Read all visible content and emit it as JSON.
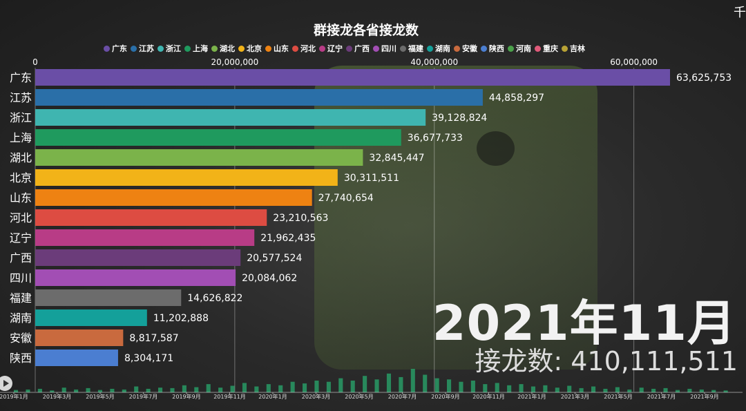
{
  "chart_data": {
    "type": "bar",
    "title": "群接龙各省接龙数",
    "legend": [
      "广东",
      "江苏",
      "浙江",
      "上海",
      "湖北",
      "北京",
      "山东",
      "河北",
      "辽宁",
      "广西",
      "四川",
      "福建",
      "湖南",
      "安徽",
      "陕西",
      "河南",
      "重庆",
      "吉林"
    ],
    "legend_colors": [
      "#6a4ea6",
      "#2a6fa8",
      "#3fb5b0",
      "#1f9a5e",
      "#7bb34a",
      "#f2b318",
      "#ee8212",
      "#dd4c42",
      "#b83c86",
      "#6b3c7a",
      "#a24eb4",
      "#6c6c6c",
      "#14a09a",
      "#c96a3e",
      "#4b7ed1",
      "#4aa14a",
      "#e05a7a",
      "#b8a235"
    ],
    "categories": [
      "广东",
      "江苏",
      "浙江",
      "上海",
      "湖北",
      "北京",
      "山东",
      "河北",
      "辽宁",
      "广西",
      "四川",
      "福建",
      "湖南",
      "安徽",
      "陕西"
    ],
    "values": [
      63625753,
      44858297,
      39128824,
      36677733,
      32845447,
      30311511,
      27740654,
      23210563,
      21962435,
      20577524,
      20084062,
      14626822,
      11202888,
      8817587,
      8304171
    ],
    "value_labels": [
      "63,625,753",
      "44,858,297",
      "39,128,824",
      "36,677,733",
      "32,845,447",
      "30,311,511",
      "27,740,654",
      "23,210,563",
      "21,962,435",
      "20,577,524",
      "20,084,062",
      "14,626,822",
      "11,202,888",
      "8,817,587",
      "8,304,171"
    ],
    "bar_colors": [
      "#6a4ea6",
      "#2a6fa8",
      "#3fb5b0",
      "#1f9a5e",
      "#7bb34a",
      "#f2b318",
      "#ee8212",
      "#dd4c42",
      "#b83c86",
      "#6b3c7a",
      "#a24eb4",
      "#6c6c6c",
      "#14a09a",
      "#c96a3e",
      "#4b7ed1"
    ],
    "x_ticks": [
      0,
      20000000,
      40000000,
      60000000
    ],
    "x_tick_labels": [
      "0",
      "20,000,000",
      "40,000,000",
      "60,000,000"
    ],
    "xlim": [
      0,
      63625753
    ],
    "grid": true,
    "legend_position": "top"
  },
  "current_period": "2021年11月",
  "total_label": "接龙数: 410,111,511",
  "timeline": {
    "labels": [
      "2019年1月",
      "2019年3月",
      "2019年5月",
      "2019年7月",
      "2019年9月",
      "2019年11月",
      "2020年1月",
      "2020年3月",
      "2020年5月",
      "2020年7月",
      "2020年9月",
      "2020年11月",
      "2021年1月",
      "2021年3月",
      "2021年5月",
      "2021年7月",
      "2021年9月"
    ],
    "activity": [
      0.1,
      0.12,
      0.15,
      0.08,
      0.2,
      0.12,
      0.18,
      0.1,
      0.15,
      0.12,
      0.25,
      0.15,
      0.2,
      0.18,
      0.3,
      0.22,
      0.35,
      0.2,
      0.28,
      0.4,
      0.25,
      0.35,
      0.3,
      0.45,
      0.38,
      0.5,
      0.45,
      0.6,
      0.5,
      0.7,
      0.55,
      0.8,
      0.65,
      1.0,
      0.75,
      0.6,
      0.55,
      0.45,
      0.5,
      0.35,
      0.4,
      0.3,
      0.35,
      0.25,
      0.3,
      0.2,
      0.28,
      0.18,
      0.25,
      0.15,
      0.22,
      0.12,
      0.2,
      0.15,
      0.18,
      0.1,
      0.15,
      0.12,
      0.1,
      0.08
    ]
  },
  "icons": {
    "play": "play-icon"
  }
}
